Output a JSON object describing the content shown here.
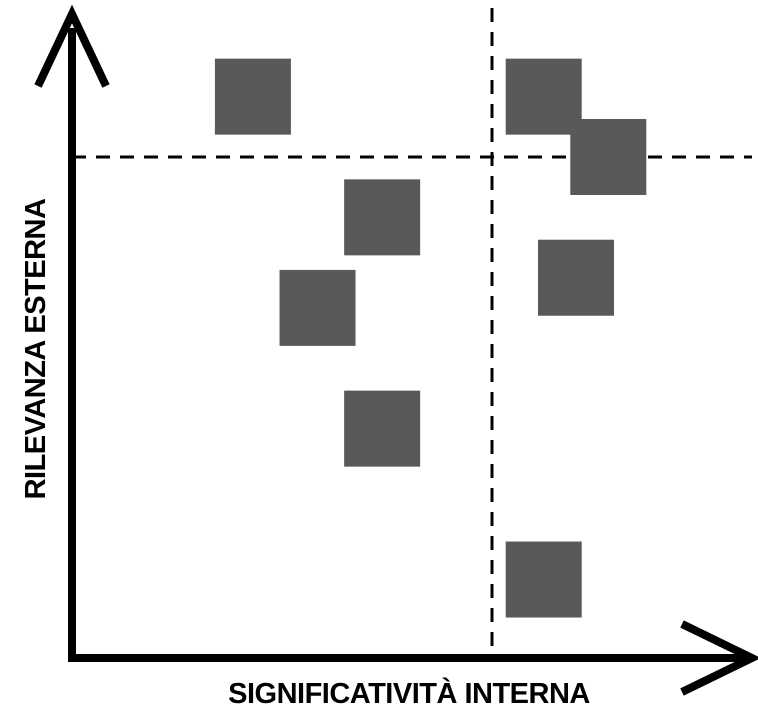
{
  "chart_data": {
    "type": "scatter",
    "title": "",
    "xlabel": "SIGNIFICATIVITÀ INTERNA",
    "ylabel": "RILEVANZA ESTERNA",
    "xlim": [
      0,
      10
    ],
    "ylim": [
      0,
      10
    ],
    "grid": false,
    "marker": "square",
    "colors": {
      "marker": "#595959",
      "axis": "#000000",
      "threshold": "#000000"
    },
    "thresholds": {
      "x": 6.5,
      "y": 8.3
    },
    "series": [
      {
        "points": [
          {
            "x": 2.8,
            "y": 9.3
          },
          {
            "x": 7.3,
            "y": 9.3
          },
          {
            "x": 8.3,
            "y": 8.3
          },
          {
            "x": 4.8,
            "y": 7.3
          },
          {
            "x": 7.8,
            "y": 6.3
          },
          {
            "x": 3.8,
            "y": 5.8
          },
          {
            "x": 4.8,
            "y": 3.8
          },
          {
            "x": 7.3,
            "y": 1.3
          }
        ]
      }
    ]
  }
}
